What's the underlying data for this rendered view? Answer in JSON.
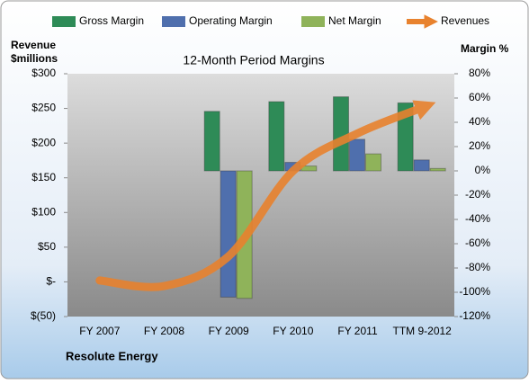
{
  "chart_data": {
    "type": "bar",
    "title": "12-Month Period Margins",
    "ylabel_lines": [
      "Revenue",
      "$millions"
    ],
    "y2label": "Margin %",
    "footer": "Resolute Energy",
    "categories": [
      "FY 2007",
      "FY 2008",
      "FY 2009",
      "FY 2010",
      "FY 2011",
      "TTM 9-2012"
    ],
    "ylim": [
      -50,
      300
    ],
    "yticks": [
      {
        "value": -50,
        "label": "$(50)"
      },
      {
        "value": 0,
        "label": "$-"
      },
      {
        "value": 50,
        "label": "$50"
      },
      {
        "value": 100,
        "label": "$100"
      },
      {
        "value": 150,
        "label": "$150"
      },
      {
        "value": 200,
        "label": "$200"
      },
      {
        "value": 250,
        "label": "$250"
      },
      {
        "value": 300,
        "label": "$300"
      }
    ],
    "y2lim": [
      -120,
      80
    ],
    "y2ticks": [
      {
        "value": -120,
        "label": "-120%"
      },
      {
        "value": -100,
        "label": "-100%"
      },
      {
        "value": -80,
        "label": "-80%"
      },
      {
        "value": -60,
        "label": "-60%"
      },
      {
        "value": -40,
        "label": "-40%"
      },
      {
        "value": -20,
        "label": "-20%"
      },
      {
        "value": 0,
        "label": "0%"
      },
      {
        "value": 20,
        "label": "20%"
      },
      {
        "value": 40,
        "label": "40%"
      },
      {
        "value": 60,
        "label": "60%"
      },
      {
        "value": 80,
        "label": "80%"
      }
    ],
    "series": [
      {
        "name": "Gross Margin",
        "color": "#2e8b57",
        "axis": "y2",
        "values": [
          null,
          null,
          49,
          57,
          61,
          56
        ]
      },
      {
        "name": "Operating Margin",
        "color": "#4f6fad",
        "axis": "y2",
        "values": [
          null,
          null,
          -104,
          7,
          26,
          9
        ]
      },
      {
        "name": "Net Margin",
        "color": "#8fb35a",
        "axis": "y2",
        "values": [
          null,
          null,
          -105,
          4,
          14,
          2
        ]
      },
      {
        "name": "Revenues",
        "color": "#e8822e",
        "type": "line",
        "values": [
          2,
          -6,
          37,
          160,
          214,
          251
        ]
      }
    ]
  }
}
